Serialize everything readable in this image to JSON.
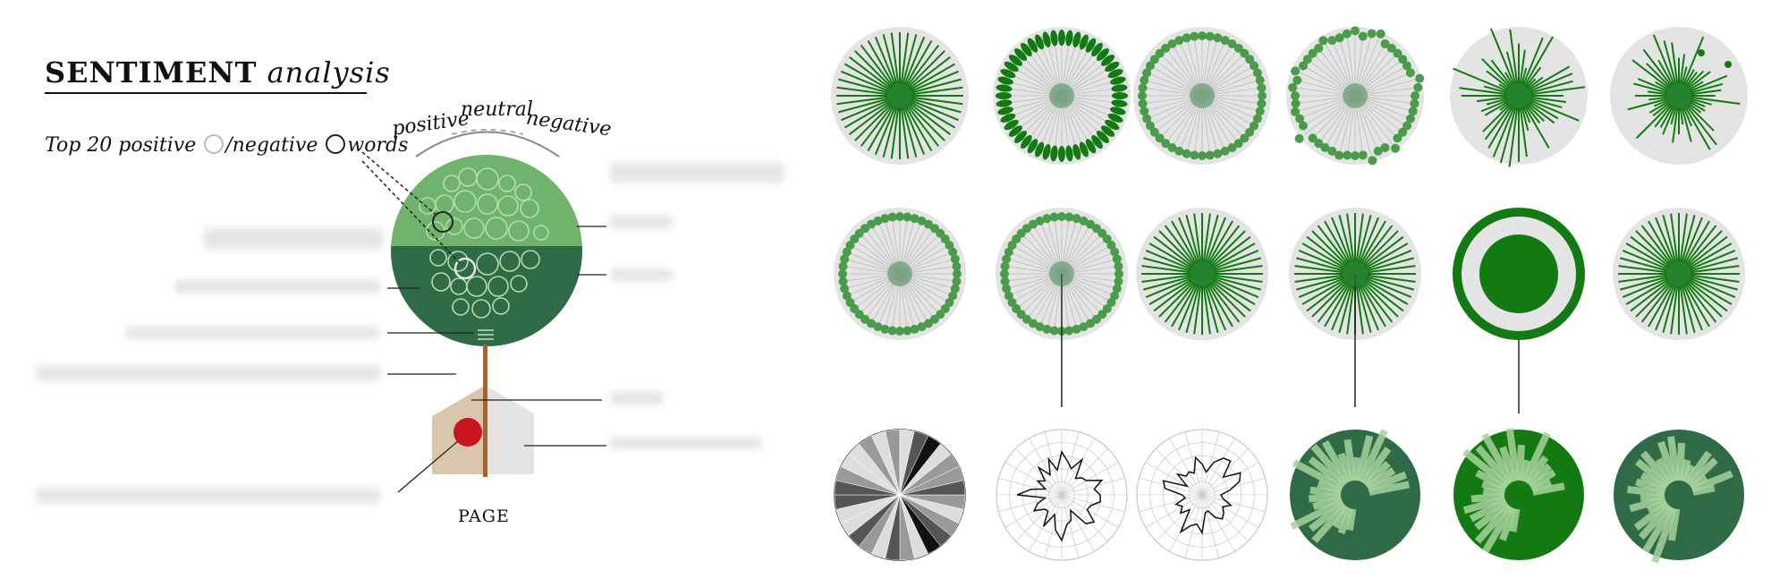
{
  "title": {
    "word1": "SENTIMENT",
    "word2": "analysis"
  },
  "legend": {
    "prefix": "Top 20 positive",
    "middle": "/negative",
    "suffix": "words"
  },
  "gauge": {
    "positive": "positive",
    "neutral": "neutral",
    "negative": "negative"
  },
  "page_label": "PAGE",
  "colors": {
    "dark_green": "#137a13",
    "mid_green": "#3a8a4a",
    "light_green": "#6fb36c",
    "pale_green": "#2f6b46",
    "grey_bg": "#e4e4e4",
    "red": "#c8141c",
    "tan": "#d9c6ad"
  },
  "thumbnails": [
    {
      "row": 1,
      "style": "radial-lines"
    },
    {
      "row": 1,
      "style": "petal-ring"
    },
    {
      "row": 1,
      "style": "dot-ring"
    },
    {
      "row": 1,
      "style": "dot-ring-scattered"
    },
    {
      "row": 1,
      "style": "irregular-lines"
    },
    {
      "row": 1,
      "style": "radial-lines-dots"
    },
    {
      "row": 2,
      "style": "dot-ring"
    },
    {
      "row": 2,
      "style": "dot-ring-stem"
    },
    {
      "row": 2,
      "style": "radial-lines"
    },
    {
      "row": 2,
      "style": "radial-lines-stem"
    },
    {
      "row": 2,
      "style": "solid-disc-ring"
    },
    {
      "row": 2,
      "style": "radial-lines"
    },
    {
      "row": 3,
      "style": "grey-sectors"
    },
    {
      "row": 3,
      "style": "radar-outline"
    },
    {
      "row": 3,
      "style": "radar-outline"
    },
    {
      "row": 3,
      "style": "radial-bars-dark"
    },
    {
      "row": 3,
      "style": "radial-bars-bright"
    },
    {
      "row": 3,
      "style": "radial-bars-dark"
    }
  ]
}
